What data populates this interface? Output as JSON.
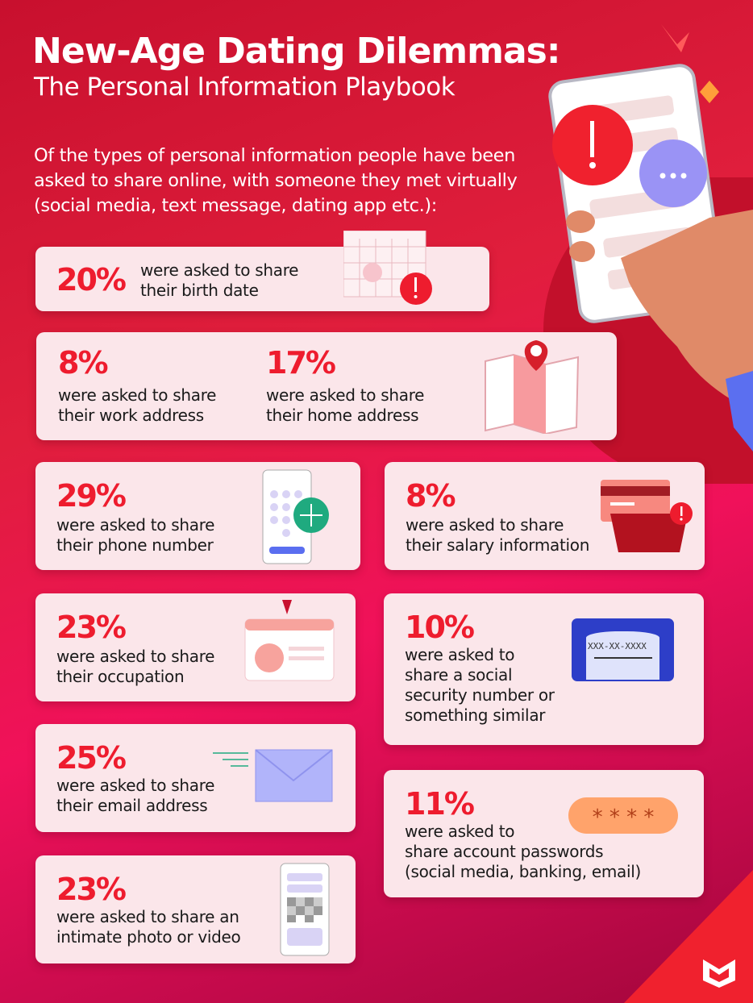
{
  "header": {
    "title": "New-Age Dating Dilemmas:",
    "subtitle": "The Personal Information Playbook"
  },
  "intro": "Of the types of personal information people have been asked to share online, with someone they met virtually (social media, text message, dating app etc.):",
  "stats": [
    {
      "percent": "20%",
      "text": "were asked to share\ntheir birth date",
      "icon": "calendar-icon"
    },
    {
      "percent": "8%",
      "text": "were asked to share\ntheir work address",
      "icon": "map-pin-icon"
    },
    {
      "percent": "17%",
      "text": "were asked to share\ntheir home address",
      "icon": "map-icon"
    },
    {
      "percent": "29%",
      "text": "were asked to share\ntheir phone number",
      "icon": "phone-dialpad-icon"
    },
    {
      "percent": "8%",
      "text": "were asked to share\ntheir salary information",
      "icon": "wallet-icon"
    },
    {
      "percent": "23%",
      "text": "were asked to share\ntheir occupation",
      "icon": "id-badge-icon"
    },
    {
      "percent": "10%",
      "text": "were asked to\nshare a social\nsecurity number or\nsomething similar",
      "icon": "ssn-card-icon"
    },
    {
      "percent": "25%",
      "text": "were asked to share\ntheir email address",
      "icon": "envelope-icon"
    },
    {
      "percent": "11%",
      "text": "were asked to\nshare account passwords\n(social media, banking, email)",
      "icon": "password-icon"
    },
    {
      "percent": "23%",
      "text": "were asked to share an\nintimate photo or video",
      "icon": "phone-photo-icon"
    }
  ],
  "ssn_card_text": "XXX-XX-XXXX",
  "password_mask": "* * * *",
  "colors": {
    "accent": "#ee1c2e",
    "card": "#fbe6ea",
    "background": "#e01e3c"
  }
}
